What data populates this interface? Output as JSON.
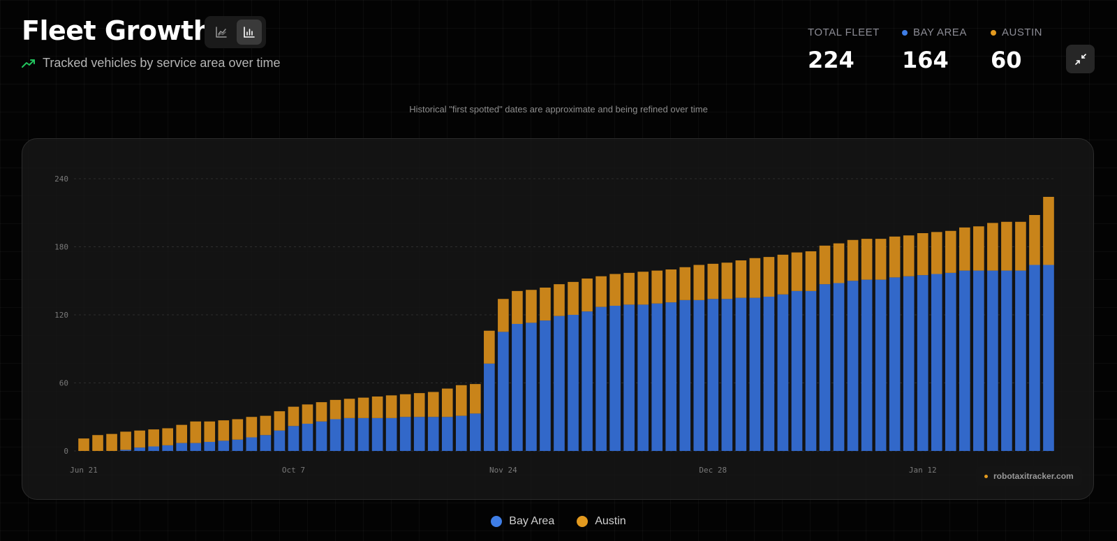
{
  "header": {
    "title": "Fleet Growth",
    "subtitle": "Tracked vehicles by service area over time",
    "subtitle_icon": "trending-up-icon",
    "view_toggle": {
      "options": [
        {
          "name": "line-chart",
          "icon": "line-chart-icon",
          "active": false
        },
        {
          "name": "bar-chart",
          "icon": "bar-chart-icon",
          "active": true
        }
      ]
    }
  },
  "stats": {
    "total": {
      "label": "TOTAL FLEET",
      "value": "224"
    },
    "bay_area": {
      "label": "BAY AREA",
      "value": "164",
      "color": "#3f7ee6"
    },
    "austin": {
      "label": "AUSTIN",
      "value": "60",
      "color": "#e39a1f"
    }
  },
  "collapse_icon": "collapse-icon",
  "note": "Historical \"first spotted\" dates are approximate and being refined over time",
  "watermark": "robotaxitracker.com",
  "legend": [
    {
      "label": "Bay Area",
      "color": "#3f7ee6"
    },
    {
      "label": "Austin",
      "color": "#e39a1f"
    }
  ],
  "chart_data": {
    "type": "bar",
    "stacked": true,
    "title": "Fleet Growth",
    "xlabel": "",
    "ylabel": "",
    "ylim": [
      0,
      240
    ],
    "yticks": [
      0,
      60,
      120,
      180,
      240
    ],
    "grid": true,
    "xtick_labels": [
      {
        "index": 0,
        "label": "Jun 21"
      },
      {
        "index": 15,
        "label": "Oct 7"
      },
      {
        "index": 30,
        "label": "Nov 24"
      },
      {
        "index": 45,
        "label": "Dec 28"
      },
      {
        "index": 60,
        "label": "Jan 12"
      }
    ],
    "series": [
      {
        "name": "Bay Area",
        "color": "#3268c9",
        "values": [
          0,
          0,
          0,
          1,
          3,
          4,
          5,
          7,
          7,
          8,
          9,
          10,
          12,
          14,
          18,
          22,
          24,
          26,
          28,
          29,
          29,
          29,
          29,
          30,
          30,
          30,
          30,
          31,
          33,
          77,
          105,
          112,
          113,
          115,
          119,
          120,
          123,
          127,
          128,
          129,
          129,
          130,
          131,
          133,
          133,
          134,
          134,
          135,
          135,
          136,
          138,
          141,
          141,
          147,
          148,
          150,
          151,
          151,
          153,
          154,
          155,
          156,
          157,
          159,
          159,
          159,
          159,
          159,
          164,
          164
        ]
      },
      {
        "name": "Austin",
        "color": "#c9841a",
        "values": [
          11,
          14,
          15,
          16,
          15,
          15,
          15,
          16,
          19,
          18,
          18,
          18,
          18,
          17,
          17,
          17,
          17,
          17,
          17,
          17,
          18,
          19,
          20,
          20,
          21,
          22,
          25,
          27,
          26,
          29,
          29,
          29,
          29,
          29,
          28,
          29,
          29,
          27,
          28,
          28,
          29,
          29,
          29,
          29,
          31,
          31,
          32,
          33,
          35,
          35,
          35,
          34,
          35,
          34,
          35,
          36,
          36,
          36,
          36,
          36,
          37,
          37,
          37,
          38,
          39,
          42,
          43,
          43,
          44,
          60
        ]
      }
    ]
  }
}
